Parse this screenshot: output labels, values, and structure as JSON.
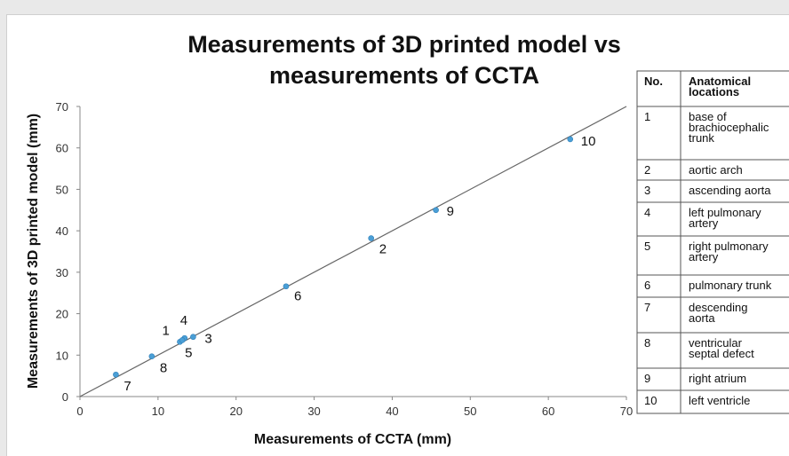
{
  "chart_data": {
    "type": "scatter",
    "title_lines": [
      "Measurements of 3D printed model vs",
      "measurements of CCTA"
    ],
    "xlabel": "Measurements of CCTA (mm)",
    "ylabel": "Measurements of 3D printed model (mm)",
    "xlim": [
      0,
      70
    ],
    "ylim": [
      0,
      70
    ],
    "xticks": [
      0,
      10,
      20,
      30,
      40,
      50,
      60,
      70
    ],
    "yticks": [
      0,
      10,
      20,
      30,
      40,
      50,
      60,
      70
    ],
    "grid": false,
    "reference_line": [
      [
        0,
        0
      ],
      [
        70,
        70
      ]
    ],
    "point_color": "#4a9fd6",
    "points": [
      {
        "label": "1",
        "x": 12.8,
        "y": 13.2
      },
      {
        "label": "2",
        "x": 37.3,
        "y": 38.2
      },
      {
        "label": "3",
        "x": 14.5,
        "y": 14.4
      },
      {
        "label": "4",
        "x": 13.4,
        "y": 14.1
      },
      {
        "label": "5",
        "x": 13.1,
        "y": 13.6
      },
      {
        "label": "6",
        "x": 26.4,
        "y": 26.6
      },
      {
        "label": "7",
        "x": 4.6,
        "y": 5.3
      },
      {
        "label": "8",
        "x": 9.2,
        "y": 9.7
      },
      {
        "label": "9",
        "x": 45.6,
        "y": 45.0
      },
      {
        "label": "10",
        "x": 62.8,
        "y": 62.1
      }
    ]
  },
  "legend_table": {
    "headers": [
      "No.",
      "Anatomical locations"
    ],
    "rows": [
      {
        "no": "1",
        "location": "base of brachiocephalic trunk"
      },
      {
        "no": "2",
        "location": "aortic arch"
      },
      {
        "no": "3",
        "location": "ascending aorta"
      },
      {
        "no": "4",
        "location": "left pulmonary artery"
      },
      {
        "no": "5",
        "location": "right pulmonary artery"
      },
      {
        "no": "6",
        "location": "pulmonary trunk"
      },
      {
        "no": "7",
        "location": "descending aorta"
      },
      {
        "no": "8",
        "location": "ventricular septal defect"
      },
      {
        "no": "9",
        "location": "right atrium"
      },
      {
        "no": "10",
        "location": "left ventricle"
      }
    ]
  }
}
